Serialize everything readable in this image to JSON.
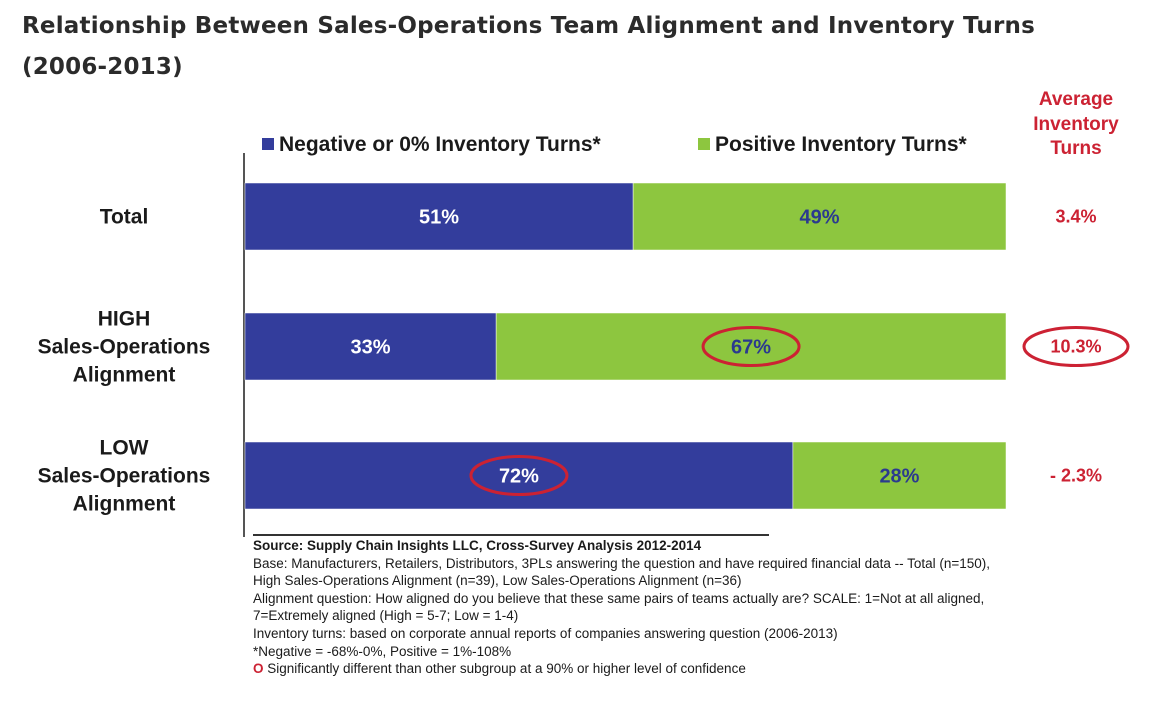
{
  "title": "Relationship Between Sales-Operations Team Alignment and Inventory Turns (2006-2013)",
  "chart_data": {
    "type": "bar",
    "orientation": "horizontal",
    "stacked": true,
    "percent": true,
    "categories": [
      [
        "Total"
      ],
      [
        "HIGH",
        "Sales-Operations",
        "Alignment"
      ],
      [
        "LOW",
        "Sales-Operations",
        "Alignment"
      ]
    ],
    "series": [
      {
        "name": "Negative or 0% Inventory Turns*",
        "color": "#333d9c",
        "label_color": "#ffffff",
        "values": [
          51,
          33,
          72
        ],
        "labels": [
          "51%",
          "33%",
          "72%"
        ]
      },
      {
        "name": "Positive Inventory Turns*",
        "color": "#8dc63f",
        "label_color": "#2b3a8f",
        "values": [
          49,
          67,
          28
        ],
        "labels": [
          "49%",
          "67%",
          "28%"
        ]
      }
    ],
    "highlighted": [
      {
        "category_index": 1,
        "series_index": 1
      },
      {
        "category_index": 2,
        "series_index": 0
      }
    ],
    "legend_position": "top",
    "side_column": {
      "header": [
        "Average",
        "Inventory",
        "Turns"
      ],
      "values": [
        "3.4%",
        "10.3%",
        "- 2.3%"
      ],
      "highlighted": [
        1
      ],
      "color": "#cc2233"
    },
    "highlight_color": "#cc2233",
    "xlim": [
      0,
      100
    ]
  },
  "footnotes": {
    "source": "Source:  Supply Chain Insights LLC, Cross-Survey Analysis 2012-2014",
    "lines": [
      "Base:  Manufacturers, Retailers, Distributors, 3PLs answering the question and have required financial data  -- Total (n=150),",
      "High Sales-Operations Alignment (n=39), Low Sales-Operations Alignment (n=36)",
      "Alignment question: How aligned do you believe that these same pairs of teams actually are?  SCALE: 1=Not at all aligned,",
      "7=Extremely aligned (High = 5-7; Low = 1-4)",
      "Inventory turns: based on corporate annual reports of companies answering question (2006-2013)",
      "*Negative = -68%-0%, Positive = 1%-108%"
    ],
    "significance_mark": "O",
    "significance_text": " Significantly different than other subgroup at a 90% or higher level of confidence"
  }
}
